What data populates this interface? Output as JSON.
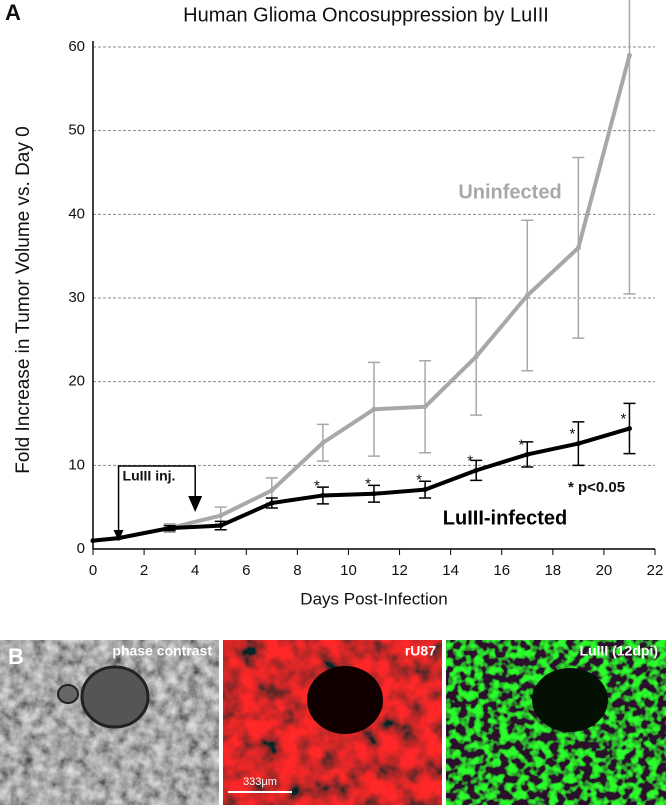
{
  "chart_data": {
    "type": "line",
    "title": "Human Glioma Oncosuppression by LuIII",
    "x_label": "Days Post-Infection",
    "y_label": "Fold Increase in Tumor Volume vs. Day 0",
    "x": [
      0,
      1,
      3,
      5,
      7,
      9,
      11,
      13,
      15,
      17,
      19,
      21
    ],
    "xlim": [
      0,
      22
    ],
    "xticks": [
      0,
      2,
      4,
      6,
      8,
      10,
      12,
      14,
      16,
      18,
      20,
      22
    ],
    "ylim": [
      0,
      60
    ],
    "yticks": [
      0,
      10,
      20,
      30,
      40,
      50,
      60
    ],
    "grid": true,
    "series": [
      {
        "name": "Uninfected",
        "color": "#a8a8a8",
        "values": [
          1,
          1.3,
          2.5,
          4,
          7,
          12.7,
          16.7,
          17,
          23,
          30.3,
          36,
          59
        ],
        "errors": [
          0,
          0,
          0.5,
          1,
          1.5,
          2.2,
          5.6,
          5.5,
          7,
          9,
          10.8,
          28.5
        ]
      },
      {
        "name": "LuIII-infected",
        "color": "#000000",
        "values": [
          1,
          1.3,
          2.5,
          2.8,
          5.5,
          6.4,
          6.6,
          7.1,
          9.4,
          11.3,
          12.6,
          14.4
        ],
        "errors": [
          0,
          0,
          0.3,
          0.5,
          0.6,
          1,
          1,
          1,
          1.2,
          1.5,
          2.6,
          3
        ]
      }
    ],
    "significance": {
      "symbol": "*",
      "x": [
        9,
        11,
        13,
        15,
        17,
        19,
        21
      ]
    },
    "p_value_note": "* p<0.05",
    "injection": {
      "label": "LuIII inj.",
      "x": [
        1,
        4
      ]
    }
  },
  "panel_labels": [
    "A",
    "B"
  ],
  "images": [
    {
      "label": "phase contrast"
    },
    {
      "label": "rU87"
    },
    {
      "label": "LuIII (12dpi)"
    }
  ],
  "scale_bar": "333μm"
}
